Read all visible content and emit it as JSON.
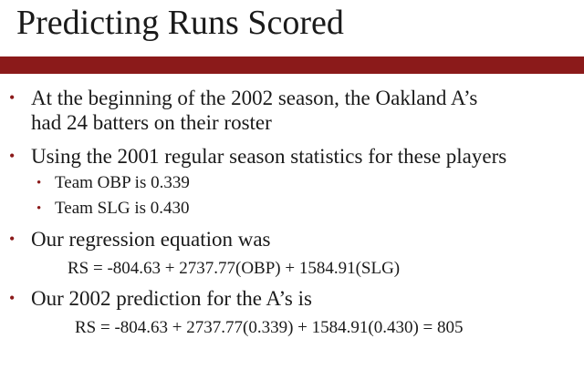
{
  "slide": {
    "title": "Predicting Runs Scored",
    "bullet_symbol": "•",
    "bullets": [
      {
        "text": "At the beginning of the 2002 season, the Oakland A’s"
      },
      {
        "text": "had 24 batters on their roster"
      },
      {
        "text": "Using the 2001 regular season statistics for these players"
      },
      {
        "text": "Team OBP is 0.339"
      },
      {
        "text": "Team SLG is 0.430"
      },
      {
        "text": "Our regression equation was"
      },
      {
        "text": "RS = -804.63 + 2737.77(OBP) + 1584.91(SLG)"
      },
      {
        "text": "Our 2002 prediction for the A’s is"
      },
      {
        "text": "RS = -804.63 + 2737.77(0.339) + 1584.91(0.430) = 805"
      }
    ],
    "colors": {
      "accent_bar": "#8b1a1a",
      "bullet": "#8b1a1a",
      "text": "#1a1a1a"
    }
  }
}
